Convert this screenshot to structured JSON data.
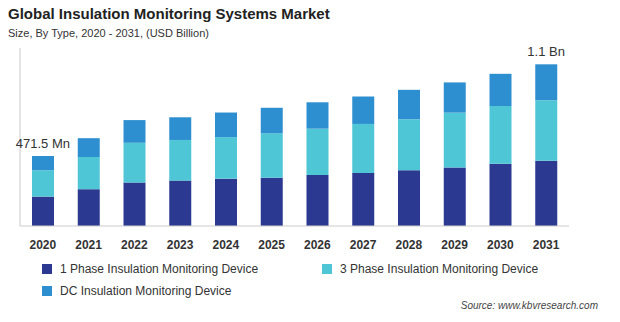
{
  "chart_data": {
    "type": "bar",
    "title": "Global Insulation Monitoring Systems Market",
    "subtitle": "Size, By Type, 2020 - 2031, (USD Billion)",
    "source": "Source: www.kbvresearch.com",
    "categories": [
      "2020",
      "2021",
      "2022",
      "2023",
      "2024",
      "2025",
      "2026",
      "2027",
      "2028",
      "2029",
      "2030",
      "2031"
    ],
    "series": [
      {
        "name": "1 Phase Insulation Monitoring Device",
        "color": "#2b3990",
        "values": [
          0.198,
          0.248,
          0.293,
          0.306,
          0.319,
          0.325,
          0.344,
          0.357,
          0.376,
          0.395,
          0.42,
          0.44
        ]
      },
      {
        "name": "3 Phase Insulation Monitoring Device",
        "color": "#4fc6d6",
        "values": [
          0.178,
          0.217,
          0.268,
          0.274,
          0.28,
          0.3,
          0.312,
          0.331,
          0.344,
          0.369,
          0.389,
          0.408
        ]
      },
      {
        "name": "DC Insulation Monitoring Device",
        "color": "#2e8fd0",
        "values": [
          0.096,
          0.127,
          0.153,
          0.153,
          0.166,
          0.172,
          0.178,
          0.185,
          0.198,
          0.204,
          0.217,
          0.242
        ]
      }
    ],
    "annotations": [
      {
        "text": "471.5 Mn",
        "category": "2020"
      },
      {
        "text": "1.1 Bn",
        "category": "2031"
      }
    ],
    "ylim": [
      0,
      1.2
    ],
    "stacked": true,
    "grid": false,
    "tick_labels": "x",
    "legend": "bottom"
  }
}
